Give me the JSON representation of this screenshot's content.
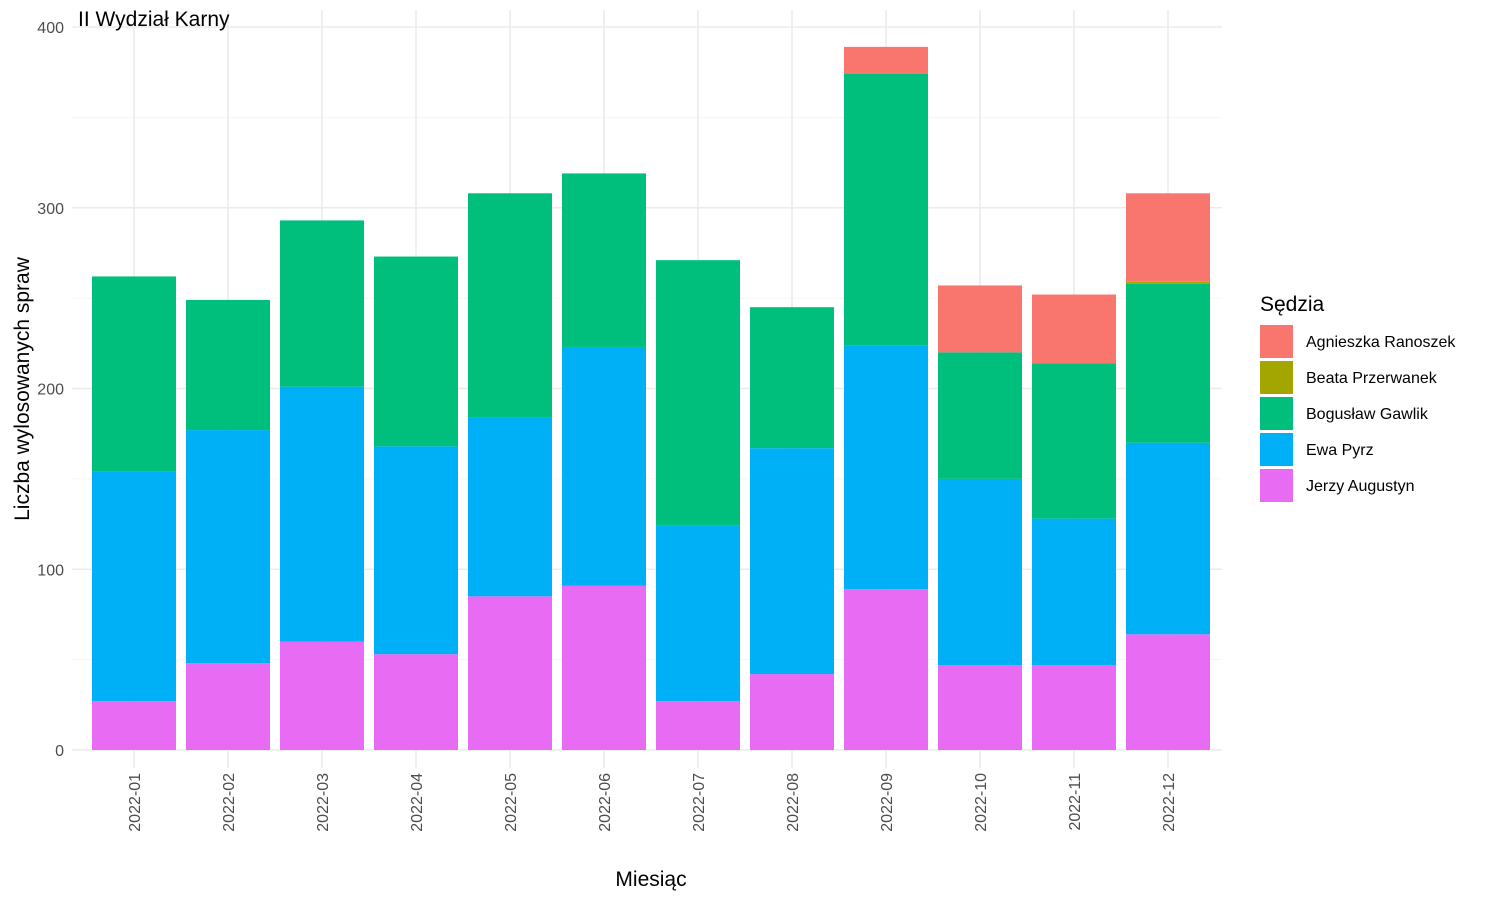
{
  "chart_data": {
    "type": "bar",
    "stacked": true,
    "title": "II Wydział Karny",
    "xlabel": "Miesiąc",
    "ylabel": "Liczba wylosowanych spraw",
    "ylim": [
      0,
      400
    ],
    "yticks": [
      0,
      100,
      200,
      300,
      400
    ],
    "grid": true,
    "legend_position": "right",
    "legend_title": "Sędzia",
    "categories": [
      "2022-01",
      "2022-02",
      "2022-03",
      "2022-04",
      "2022-05",
      "2022-06",
      "2022-07",
      "2022-08",
      "2022-09",
      "2022-10",
      "2022-11",
      "2022-12"
    ],
    "series": [
      {
        "name": "Agnieszka Ranoszek",
        "color": "#F8766D",
        "values": [
          0,
          0,
          0,
          0,
          0,
          0,
          0,
          0,
          15,
          37,
          38,
          49
        ]
      },
      {
        "name": "Beata Przerwanek",
        "color": "#A3A500",
        "values": [
          0,
          0,
          0,
          0,
          0,
          0,
          0,
          0,
          0,
          0,
          0,
          1
        ]
      },
      {
        "name": "Bogusław Gawlik",
        "color": "#00BF7D",
        "values": [
          108,
          72,
          92,
          105,
          124,
          96,
          147,
          78,
          150,
          70,
          86,
          88
        ]
      },
      {
        "name": "Ewa Pyrz",
        "color": "#00B0F6",
        "values": [
          127,
          129,
          141,
          115,
          99,
          132,
          97,
          125,
          135,
          103,
          81,
          106
        ]
      },
      {
        "name": "Jerzy Augustyn",
        "color": "#E76BF3",
        "values": [
          27,
          48,
          60,
          53,
          85,
          91,
          27,
          42,
          89,
          47,
          47,
          64
        ]
      }
    ]
  }
}
